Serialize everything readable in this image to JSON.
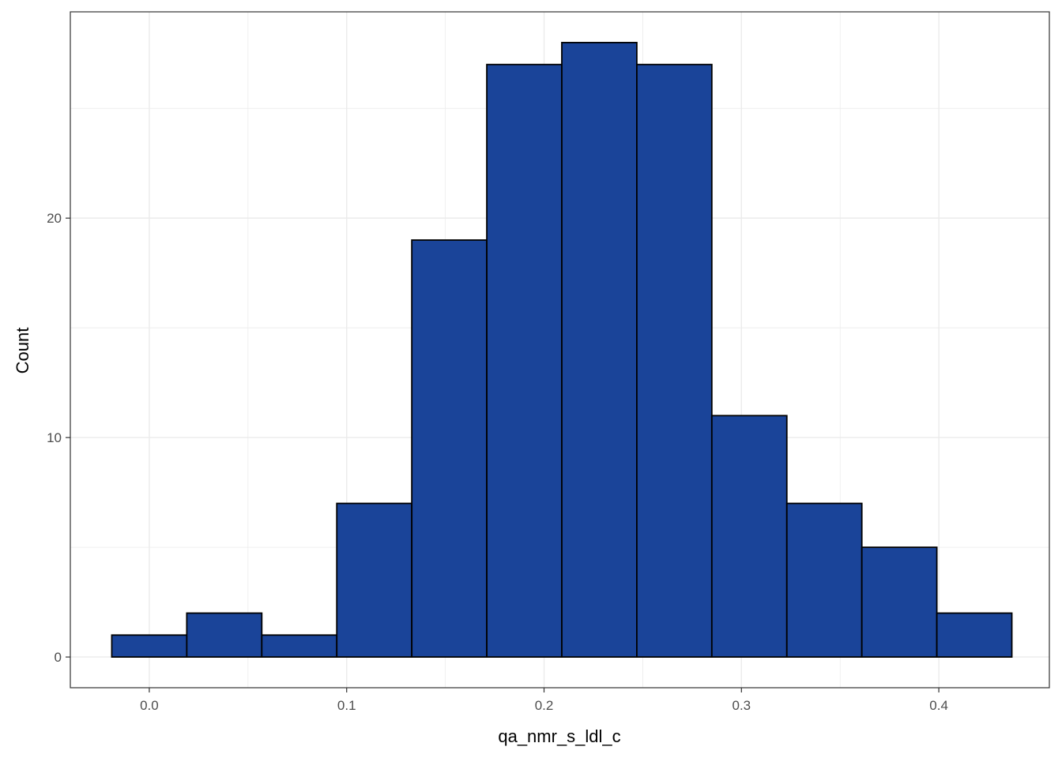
{
  "chart_data": {
    "type": "bar",
    "title": "",
    "xlabel": "qa_nmr_s_ldl_c",
    "ylabel": "Count",
    "bin_edges": [
      -0.019,
      0.019,
      0.057,
      0.095,
      0.133,
      0.171,
      0.209,
      0.247,
      0.285,
      0.323,
      0.361,
      0.399,
      0.437
    ],
    "values": [
      1,
      2,
      1,
      7,
      19,
      27,
      28,
      27,
      11,
      7,
      5,
      2
    ],
    "xlim": [
      -0.04,
      0.456
    ],
    "ylim": [
      -1.4,
      29.4
    ],
    "x_ticks": [
      0.0,
      0.1,
      0.2,
      0.3,
      0.4
    ],
    "x_tick_labels": [
      "0.0",
      "0.1",
      "0.2",
      "0.3",
      "0.4"
    ],
    "y_ticks": [
      0,
      10,
      20
    ],
    "y_tick_labels": [
      "0",
      "10",
      "20"
    ],
    "x_minor_ticks": [
      0.05,
      0.15,
      0.25,
      0.35
    ],
    "y_minor_ticks": [
      5,
      15,
      25
    ],
    "grid": true,
    "bar_fill": "#1a4499",
    "bar_stroke": "#000000",
    "grid_color": "#ebebeb",
    "panel_border": "#333333"
  }
}
